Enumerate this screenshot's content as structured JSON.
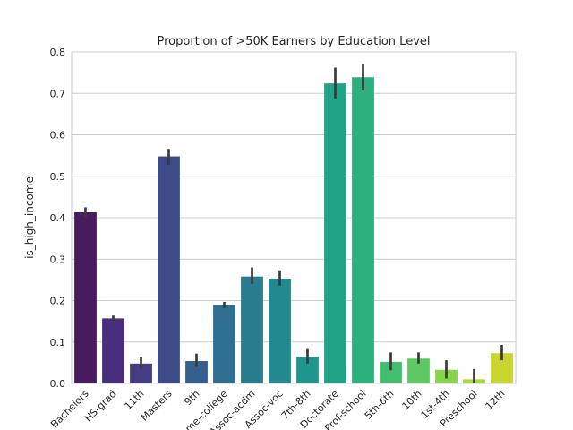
{
  "chart_data": {
    "type": "bar",
    "title": "Proportion of >50K Earners by Education Level",
    "xlabel": "",
    "ylabel": "is_high_income",
    "ylim": [
      0,
      0.8
    ],
    "yticks": [
      "0.0",
      "0.1",
      "0.2",
      "0.3",
      "0.4",
      "0.5",
      "0.6",
      "0.7",
      "0.8"
    ],
    "grid": "horizontal",
    "categories": [
      "Bachelors",
      "HS-grad",
      "11th",
      "Masters",
      "9th",
      "Some-college",
      "Assoc-acdm",
      "Assoc-voc",
      "7th-8th",
      "Doctorate",
      "Prof-school",
      "5th-6th",
      "10th",
      "1st-4th",
      "Preschool",
      "12th"
    ],
    "values": [
      0.413,
      0.157,
      0.048,
      0.548,
      0.054,
      0.189,
      0.258,
      0.253,
      0.064,
      0.724,
      0.739,
      0.052,
      0.06,
      0.033,
      0.01,
      0.073
    ],
    "ci_low": [
      0.401,
      0.15,
      0.036,
      0.528,
      0.04,
      0.182,
      0.24,
      0.236,
      0.048,
      0.688,
      0.707,
      0.032,
      0.048,
      0.012,
      0.0,
      0.056
    ],
    "ci_high": [
      0.425,
      0.164,
      0.064,
      0.566,
      0.072,
      0.197,
      0.28,
      0.273,
      0.083,
      0.762,
      0.77,
      0.075,
      0.075,
      0.056,
      0.035,
      0.093
    ],
    "colors": [
      "#481b60",
      "#472f7d",
      "#453d84",
      "#3e4b89",
      "#355f8d",
      "#2e6e8e",
      "#287c8e",
      "#22898e",
      "#1f968b",
      "#20a386",
      "#2cb17e",
      "#45bd70",
      "#5ec962",
      "#85d54a",
      "#a9db33",
      "#c8d62f"
    ],
    "error_color": "#3a3a3a"
  }
}
